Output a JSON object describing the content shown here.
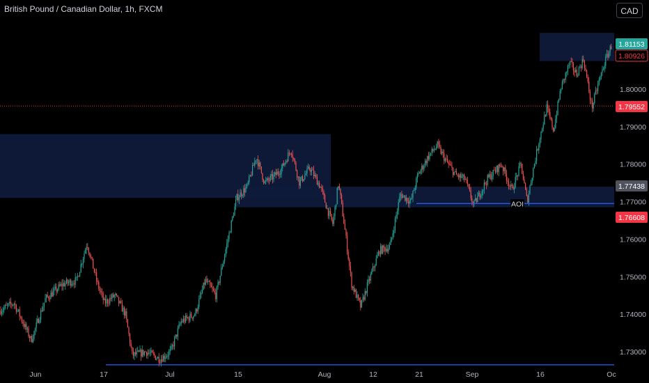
{
  "header": {
    "title": "British Pound / Canadian Dollar, 1h, FXCM",
    "currency_button": "CAD"
  },
  "chart_data": {
    "type": "candlestick",
    "symbol": "British Pound / Canadian Dollar",
    "interval": "1h",
    "source": "FXCM",
    "ylim": [
      1.7245,
      1.8195
    ],
    "y_ticks": [
      "1.73000",
      "1.74000",
      "1.75000",
      "1.76000",
      "1.77000",
      "1.78000",
      "1.79000",
      "1.80000"
    ],
    "x_ticks": [
      "Jun",
      "17",
      "Jul",
      "15",
      "Aug",
      "12",
      "21",
      "Sep",
      "16",
      "Oc"
    ],
    "price_tags": [
      {
        "label": "1.81153",
        "value": 1.81153,
        "color": "#26a69a",
        "style": "filled"
      },
      {
        "label": "1.80926",
        "value": 1.80926,
        "color": "#f23645",
        "style": "outline"
      },
      {
        "label": "1.79552",
        "value": 1.79552,
        "color": "#f23645",
        "style": "filled"
      },
      {
        "label": "1.77438",
        "value": 1.77438,
        "color": "#50535e",
        "style": "filled"
      },
      {
        "label": "1.76608",
        "value": 1.76608,
        "color": "#f23645",
        "style": "filled"
      }
    ],
    "path": [
      [
        0,
        1.741
      ],
      [
        20,
        1.743
      ],
      [
        45,
        1.733
      ],
      [
        65,
        1.744
      ],
      [
        90,
        1.748
      ],
      [
        110,
        1.749
      ],
      [
        125,
        1.759
      ],
      [
        140,
        1.748
      ],
      [
        150,
        1.743
      ],
      [
        165,
        1.745
      ],
      [
        180,
        1.74
      ],
      [
        190,
        1.729
      ],
      [
        210,
        1.73
      ],
      [
        230,
        1.728
      ],
      [
        245,
        1.73
      ],
      [
        260,
        1.738
      ],
      [
        280,
        1.74
      ],
      [
        295,
        1.749
      ],
      [
        310,
        1.745
      ],
      [
        325,
        1.758
      ],
      [
        340,
        1.771
      ],
      [
        355,
        1.774
      ],
      [
        368,
        1.782
      ],
      [
        380,
        1.775
      ],
      [
        395,
        1.777
      ],
      [
        405,
        1.779
      ],
      [
        418,
        1.784
      ],
      [
        430,
        1.775
      ],
      [
        445,
        1.779
      ],
      [
        460,
        1.774
      ],
      [
        470,
        1.768
      ],
      [
        478,
        1.764
      ],
      [
        486,
        1.775
      ],
      [
        495,
        1.763
      ],
      [
        505,
        1.748
      ],
      [
        518,
        1.742
      ],
      [
        530,
        1.749
      ],
      [
        545,
        1.757
      ],
      [
        560,
        1.758
      ],
      [
        575,
        1.772
      ],
      [
        590,
        1.77
      ],
      [
        600,
        1.777
      ],
      [
        615,
        1.782
      ],
      [
        628,
        1.785
      ],
      [
        640,
        1.781
      ],
      [
        655,
        1.777
      ],
      [
        668,
        1.776
      ],
      [
        680,
        1.769
      ],
      [
        700,
        1.776
      ],
      [
        720,
        1.78
      ],
      [
        735,
        1.773
      ],
      [
        748,
        1.78
      ],
      [
        757,
        1.77
      ],
      [
        765,
        1.778
      ],
      [
        775,
        1.787
      ],
      [
        785,
        1.795
      ],
      [
        795,
        1.789
      ],
      [
        805,
        1.8
      ],
      [
        818,
        1.807
      ],
      [
        828,
        1.804
      ],
      [
        838,
        1.808
      ],
      [
        850,
        1.795
      ],
      [
        860,
        1.802
      ],
      [
        870,
        1.808
      ],
      [
        878,
        1.8115
      ]
    ],
    "zones": [
      {
        "x_from": 0,
        "x_to": 475,
        "y_from": 1.771,
        "y_to": 1.788
      },
      {
        "x_from": 340,
        "x_to": 882,
        "y_from": 1.7685,
        "y_to": 1.774
      },
      {
        "x_from": 775,
        "x_to": 882,
        "y_from": 1.8075,
        "y_to": 1.815
      }
    ],
    "lines": [
      {
        "x_from": 598,
        "x_to": 882,
        "y": 1.7695,
        "color": "#2962ff"
      },
      {
        "x_from": 152,
        "x_to": 882,
        "y": 1.7265,
        "color": "#2962ff"
      }
    ],
    "reference_line": {
      "y": 1.79552,
      "color": "#f23645",
      "style": "dotted"
    },
    "annotations": [
      {
        "text": "AOI",
        "x": 742,
        "y": 1.7695
      }
    ],
    "colors": {
      "up": "#26a69a",
      "down": "#ef5350",
      "zone": "#0f1a3a",
      "line": "#2962ff"
    }
  }
}
